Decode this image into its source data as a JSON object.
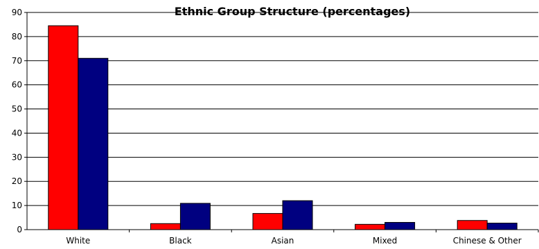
{
  "chart_data": {
    "type": "bar",
    "title": "Ethnic Group Structure (percentages)",
    "xlabel": "",
    "ylabel": "",
    "categories": [
      "White",
      "Black",
      "Asian",
      "Mixed",
      "Chinese & Other"
    ],
    "series": [
      {
        "values": [
          84.5,
          2.5,
          6.7,
          2.2,
          3.8
        ],
        "color": "#ff0000"
      },
      {
        "values": [
          71.0,
          10.9,
          12.0,
          3.0,
          2.7
        ],
        "color": "#000080"
      }
    ],
    "ylim": [
      0,
      90
    ],
    "yticks": [
      0,
      10,
      20,
      30,
      40,
      50,
      60,
      70,
      80,
      90
    ],
    "grid": true
  }
}
